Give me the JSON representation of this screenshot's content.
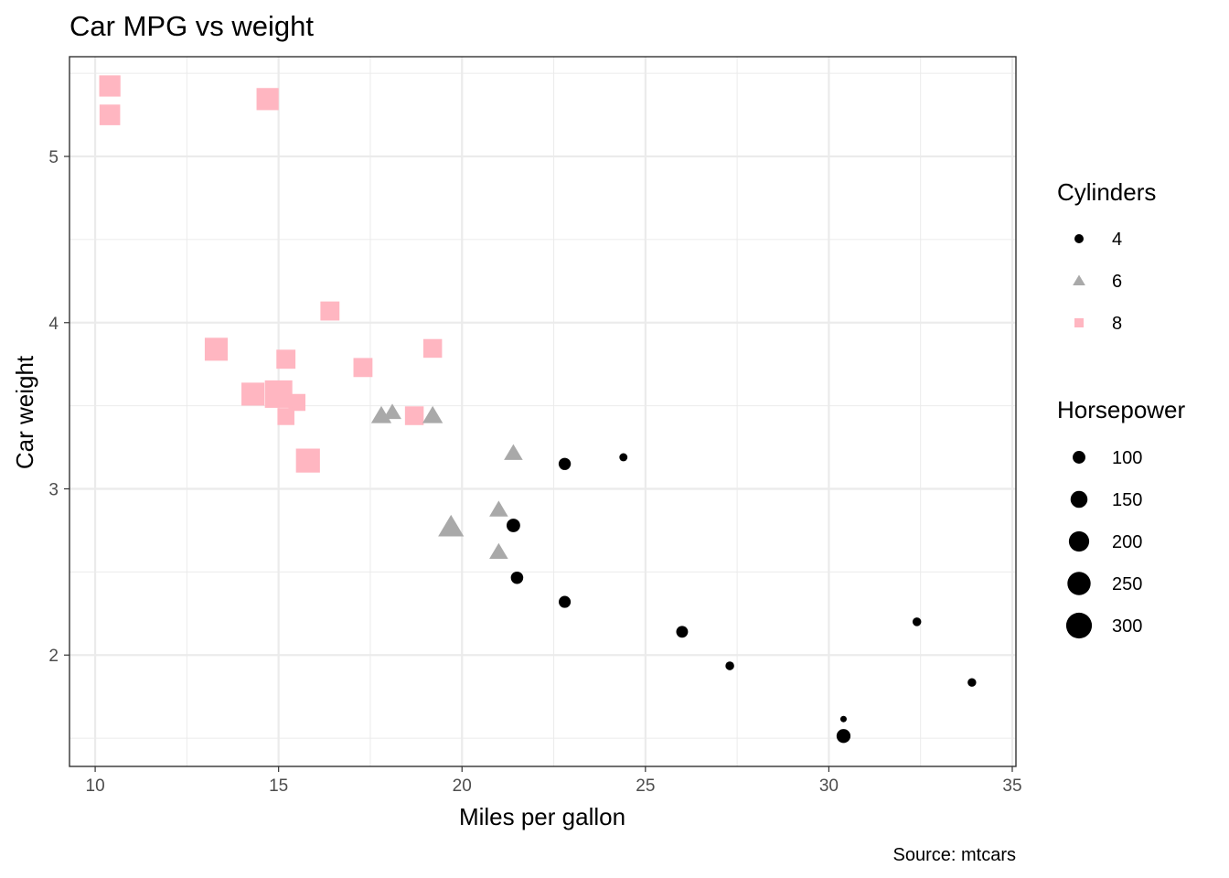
{
  "chart_data": {
    "type": "scatter",
    "title": "Car MPG vs weight",
    "xlabel": "Miles per gallon",
    "ylabel": "Car weight",
    "caption": "Source: mtcars",
    "xlim": [
      9.3,
      35.1
    ],
    "ylim": [
      1.33,
      5.6
    ],
    "x_ticks": [
      10,
      15,
      20,
      25,
      30,
      35
    ],
    "y_ticks": [
      2,
      3,
      4,
      5
    ],
    "grid": true,
    "legend_position": "right",
    "colors": {
      "4": "#000000",
      "6": "#a9a9a9",
      "8": "#ffb6c1"
    },
    "shapes": {
      "4": "circle",
      "6": "triangle",
      "8": "square"
    },
    "color_legend": {
      "title": "Cylinders",
      "items": [
        "4",
        "6",
        "8"
      ]
    },
    "size_legend": {
      "title": "Horsepower",
      "values": [
        100,
        150,
        200,
        250,
        300
      ]
    },
    "points": [
      {
        "mpg": 21.0,
        "wt": 2.62,
        "cyl": "6",
        "hp": 110
      },
      {
        "mpg": 21.0,
        "wt": 2.875,
        "cyl": "6",
        "hp": 110
      },
      {
        "mpg": 22.8,
        "wt": 2.32,
        "cyl": "4",
        "hp": 93
      },
      {
        "mpg": 21.4,
        "wt": 3.215,
        "cyl": "6",
        "hp": 110
      },
      {
        "mpg": 18.7,
        "wt": 3.44,
        "cyl": "8",
        "hp": 175
      },
      {
        "mpg": 18.1,
        "wt": 3.46,
        "cyl": "6",
        "hp": 105
      },
      {
        "mpg": 14.3,
        "wt": 3.57,
        "cyl": "8",
        "hp": 245
      },
      {
        "mpg": 24.4,
        "wt": 3.19,
        "cyl": "4",
        "hp": 62
      },
      {
        "mpg": 22.8,
        "wt": 3.15,
        "cyl": "4",
        "hp": 95
      },
      {
        "mpg": 19.2,
        "wt": 3.44,
        "cyl": "6",
        "hp": 123
      },
      {
        "mpg": 17.8,
        "wt": 3.44,
        "cyl": "6",
        "hp": 123
      },
      {
        "mpg": 16.4,
        "wt": 4.07,
        "cyl": "8",
        "hp": 180
      },
      {
        "mpg": 17.3,
        "wt": 3.73,
        "cyl": "8",
        "hp": 180
      },
      {
        "mpg": 15.2,
        "wt": 3.78,
        "cyl": "8",
        "hp": 180
      },
      {
        "mpg": 10.4,
        "wt": 5.25,
        "cyl": "8",
        "hp": 205
      },
      {
        "mpg": 10.4,
        "wt": 5.424,
        "cyl": "8",
        "hp": 215
      },
      {
        "mpg": 14.7,
        "wt": 5.345,
        "cyl": "8",
        "hp": 230
      },
      {
        "mpg": 32.4,
        "wt": 2.2,
        "cyl": "4",
        "hp": 66
      },
      {
        "mpg": 30.4,
        "wt": 1.615,
        "cyl": "4",
        "hp": 52
      },
      {
        "mpg": 33.9,
        "wt": 1.835,
        "cyl": "4",
        "hp": 65
      },
      {
        "mpg": 21.5,
        "wt": 2.465,
        "cyl": "4",
        "hp": 97
      },
      {
        "mpg": 15.5,
        "wt": 3.52,
        "cyl": "8",
        "hp": 150
      },
      {
        "mpg": 15.2,
        "wt": 3.435,
        "cyl": "8",
        "hp": 150
      },
      {
        "mpg": 13.3,
        "wt": 3.84,
        "cyl": "8",
        "hp": 245
      },
      {
        "mpg": 19.2,
        "wt": 3.845,
        "cyl": "8",
        "hp": 175
      },
      {
        "mpg": 27.3,
        "wt": 1.935,
        "cyl": "4",
        "hp": 66
      },
      {
        "mpg": 26.0,
        "wt": 2.14,
        "cyl": "4",
        "hp": 91
      },
      {
        "mpg": 30.4,
        "wt": 1.513,
        "cyl": "4",
        "hp": 113
      },
      {
        "mpg": 15.8,
        "wt": 3.17,
        "cyl": "8",
        "hp": 264
      },
      {
        "mpg": 19.7,
        "wt": 2.77,
        "cyl": "6",
        "hp": 175
      },
      {
        "mpg": 15.0,
        "wt": 3.57,
        "cyl": "8",
        "hp": 335
      },
      {
        "mpg": 21.4,
        "wt": 2.78,
        "cyl": "4",
        "hp": 109
      }
    ]
  }
}
